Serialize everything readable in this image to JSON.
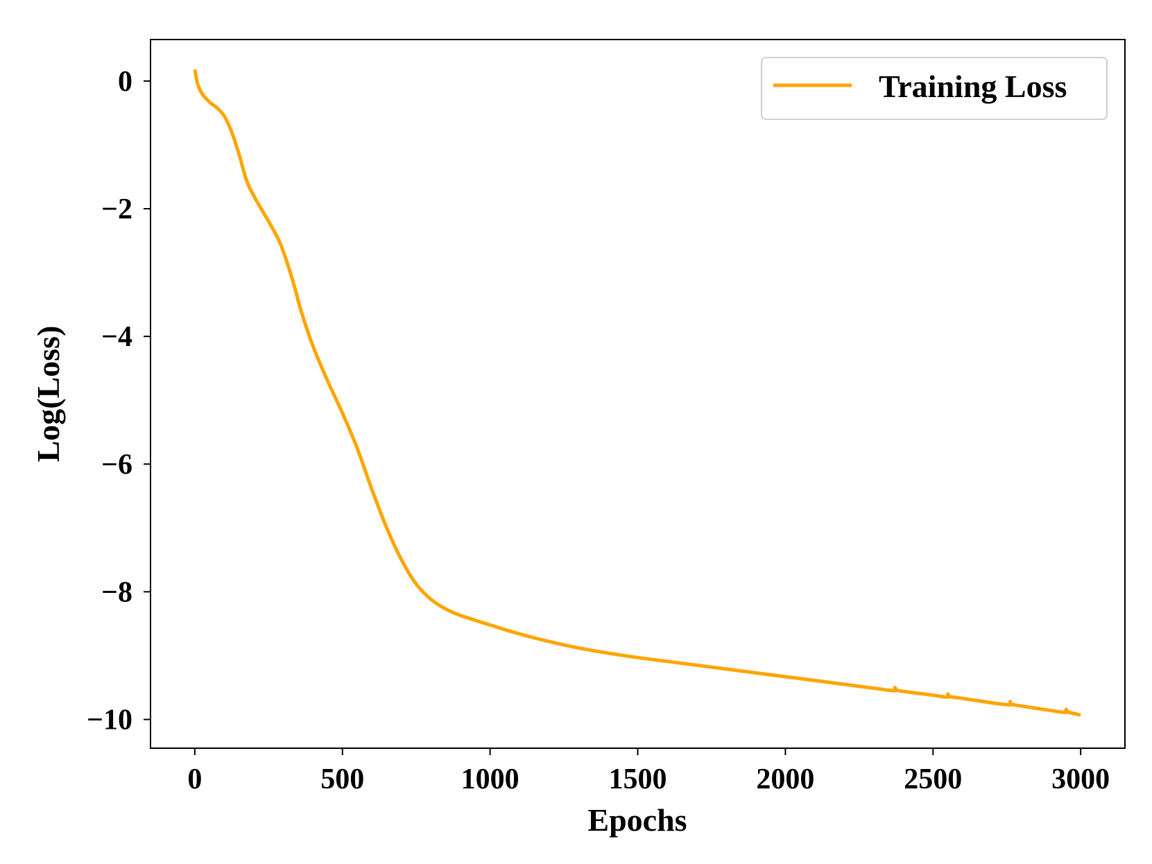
{
  "chart_data": {
    "type": "line",
    "title": "",
    "xlabel": "Epochs",
    "ylabel": "Log(Loss)",
    "xlim": [
      -150,
      3150
    ],
    "ylim": [
      -10.45,
      0.65
    ],
    "xticks": [
      0,
      500,
      1000,
      1500,
      2000,
      2500,
      3000
    ],
    "xtick_labels": [
      "0",
      "500",
      "1000",
      "1500",
      "2000",
      "2500",
      "3000"
    ],
    "yticks": [
      0,
      -2,
      -4,
      -6,
      -8,
      -10
    ],
    "ytick_labels": [
      "0",
      "−2",
      "−4",
      "−6",
      "−8",
      "−10"
    ],
    "grid": false,
    "legend_position": "top-right",
    "series": [
      {
        "name": "Training Loss",
        "color": "#FFA500",
        "x": [
          0,
          10,
          25,
          50,
          75,
          100,
          125,
          150,
          175,
          200,
          250,
          290,
          330,
          360,
          400,
          450,
          500,
          550,
          600,
          650,
          700,
          750,
          800,
          850,
          900,
          1000,
          1100,
          1200,
          1300,
          1400,
          1500,
          1600,
          1700,
          1800,
          1900,
          2000,
          2100,
          2200,
          2300,
          2370,
          2371,
          2375,
          2400,
          2500,
          2550,
          2551,
          2555,
          2600,
          2700,
          2760,
          2761,
          2765,
          2800,
          2900,
          2950,
          2951,
          2955,
          3000
        ],
        "y": [
          0.18,
          -0.05,
          -0.2,
          -0.33,
          -0.42,
          -0.55,
          -0.8,
          -1.15,
          -1.55,
          -1.8,
          -2.2,
          -2.55,
          -3.1,
          -3.6,
          -4.15,
          -4.7,
          -5.2,
          -5.75,
          -6.4,
          -7.0,
          -7.5,
          -7.88,
          -8.12,
          -8.27,
          -8.37,
          -8.52,
          -8.66,
          -8.78,
          -8.88,
          -8.96,
          -9.03,
          -9.09,
          -9.15,
          -9.21,
          -9.27,
          -9.33,
          -9.39,
          -9.45,
          -9.51,
          -9.55,
          -9.5,
          -9.54,
          -9.56,
          -9.62,
          -9.65,
          -9.6,
          -9.64,
          -9.67,
          -9.74,
          -9.77,
          -9.72,
          -9.76,
          -9.79,
          -9.86,
          -9.89,
          -9.84,
          -9.88,
          -9.93
        ]
      }
    ]
  }
}
